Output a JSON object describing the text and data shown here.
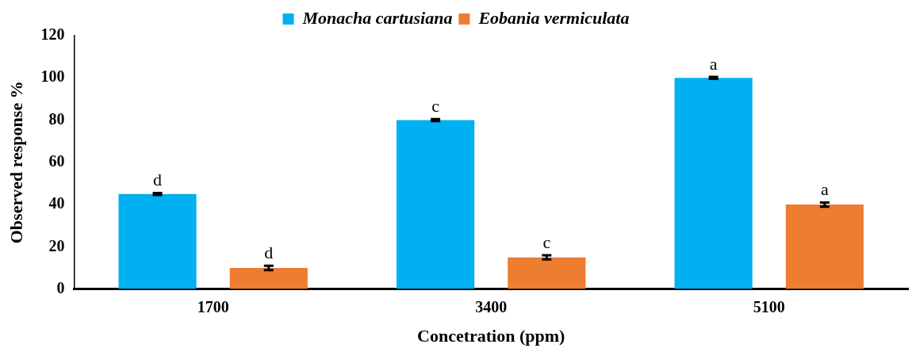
{
  "chart_data": {
    "type": "bar",
    "xlabel": "Concetration (ppm)",
    "ylabel": "Observed response %",
    "categories": [
      "1700",
      "3400",
      "5100"
    ],
    "series": [
      {
        "name": "Monacha cartusiana",
        "color": "#00b0f0",
        "values": [
          45,
          80,
          100
        ],
        "errors": [
          0.5,
          0.5,
          0.5
        ],
        "value_labels": [
          "d",
          "c",
          "a"
        ]
      },
      {
        "name": "Eobania vermiculata",
        "color": "#ed7d31",
        "values": [
          10,
          15,
          40
        ],
        "errors": [
          1,
          1,
          1
        ],
        "value_labels": [
          "d",
          "c",
          "a"
        ]
      }
    ],
    "ylim": [
      0,
      120
    ],
    "yticks": [
      0,
      20,
      40,
      60,
      80,
      100,
      120
    ],
    "grid": false,
    "legend": "top"
  }
}
